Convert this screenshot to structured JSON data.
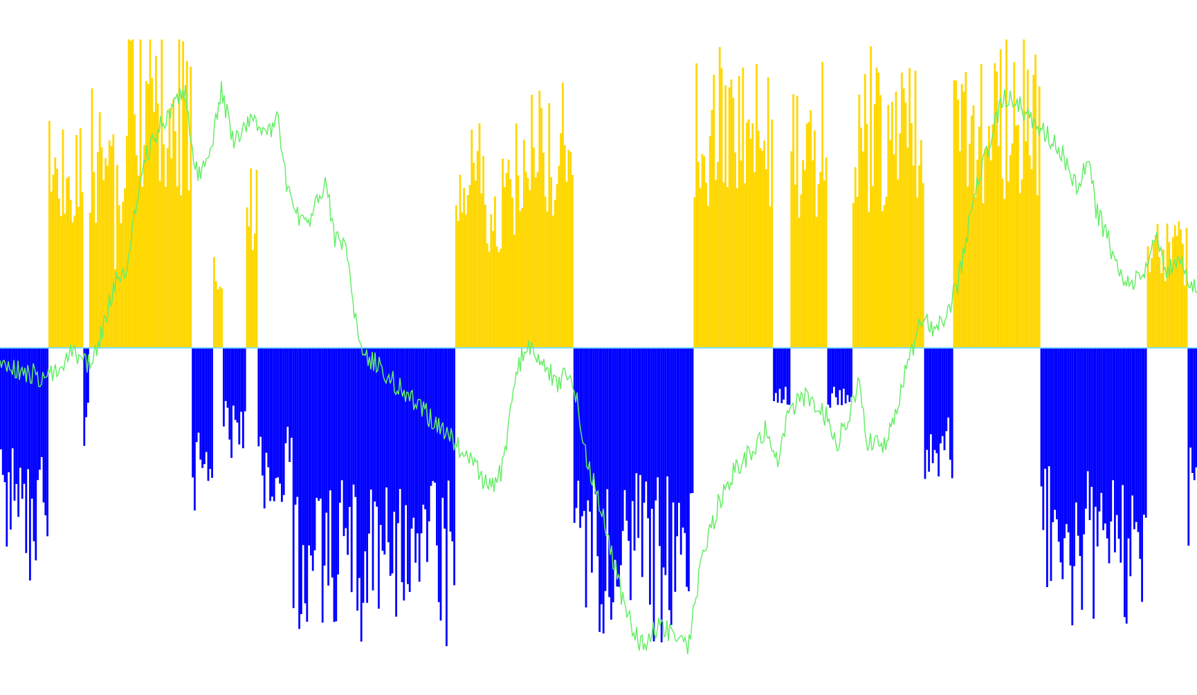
{
  "chart_data": {
    "type": "bar",
    "title": "",
    "xlabel": "",
    "ylabel": "",
    "ylim": [
      -1,
      1
    ],
    "grid": false,
    "legend": "none",
    "colors": {
      "positive": "#FFD700",
      "negative": "#0000FF",
      "line": "#66EE66",
      "zero": "#7FDFFF"
    },
    "series": [
      {
        "type": "bar",
        "segments": [
          {
            "start": 0,
            "end": 0.039,
            "sign": -1,
            "level": 0.58
          },
          {
            "start": 0.039,
            "end": 0.068,
            "sign": 1,
            "level": 0.66
          },
          {
            "start": 0.068,
            "end": 0.074,
            "sign": -1,
            "level": 0.25
          },
          {
            "start": 0.074,
            "end": 0.095,
            "sign": 1,
            "level": 0.72
          },
          {
            "start": 0.095,
            "end": 0.105,
            "sign": 1,
            "level": 0.45
          },
          {
            "start": 0.105,
            "end": 0.16,
            "sign": 1,
            "level": 0.86
          },
          {
            "start": 0.16,
            "end": 0.178,
            "sign": -1,
            "level": 0.4
          },
          {
            "start": 0.178,
            "end": 0.186,
            "sign": 1,
            "level": 0.3
          },
          {
            "start": 0.186,
            "end": 0.204,
            "sign": -1,
            "level": 0.28
          },
          {
            "start": 0.204,
            "end": 0.214,
            "sign": 1,
            "level": 0.45
          },
          {
            "start": 0.214,
            "end": 0.244,
            "sign": -1,
            "level": 0.45
          },
          {
            "start": 0.244,
            "end": 0.38,
            "sign": -1,
            "level": 0.76
          },
          {
            "start": 0.38,
            "end": 0.43,
            "sign": 1,
            "level": 0.55
          },
          {
            "start": 0.43,
            "end": 0.478,
            "sign": 1,
            "level": 0.74
          },
          {
            "start": 0.478,
            "end": 0.578,
            "sign": -1,
            "level": 0.72
          },
          {
            "start": 0.578,
            "end": 0.645,
            "sign": 1,
            "level": 0.78
          },
          {
            "start": 0.645,
            "end": 0.66,
            "sign": -1,
            "level": 0.18
          },
          {
            "start": 0.66,
            "end": 0.69,
            "sign": 1,
            "level": 0.72
          },
          {
            "start": 0.69,
            "end": 0.712,
            "sign": -1,
            "level": 0.18
          },
          {
            "start": 0.712,
            "end": 0.772,
            "sign": 1,
            "level": 0.78
          },
          {
            "start": 0.772,
            "end": 0.796,
            "sign": -1,
            "level": 0.38
          },
          {
            "start": 0.796,
            "end": 0.868,
            "sign": 1,
            "level": 0.82
          },
          {
            "start": 0.868,
            "end": 0.958,
            "sign": -1,
            "level": 0.68
          },
          {
            "start": 0.958,
            "end": 0.992,
            "sign": 1,
            "level": 0.35
          },
          {
            "start": 0.992,
            "end": 1.0,
            "sign": -1,
            "level": 0.55
          }
        ]
      },
      {
        "type": "line",
        "points": [
          [
            0.0,
            -0.05
          ],
          [
            0.04,
            -0.1
          ],
          [
            0.05,
            -0.05
          ],
          [
            0.06,
            -0.02
          ],
          [
            0.075,
            -0.05
          ],
          [
            0.085,
            0.05
          ],
          [
            0.095,
            0.2
          ],
          [
            0.105,
            0.25
          ],
          [
            0.12,
            0.6
          ],
          [
            0.14,
            0.75
          ],
          [
            0.155,
            0.82
          ],
          [
            0.16,
            0.62
          ],
          [
            0.165,
            0.55
          ],
          [
            0.175,
            0.6
          ],
          [
            0.185,
            0.82
          ],
          [
            0.195,
            0.65
          ],
          [
            0.205,
            0.7
          ],
          [
            0.212,
            0.72
          ],
          [
            0.222,
            0.68
          ],
          [
            0.232,
            0.73
          ],
          [
            0.24,
            0.5
          ],
          [
            0.25,
            0.4
          ],
          [
            0.26,
            0.42
          ],
          [
            0.272,
            0.52
          ],
          [
            0.28,
            0.35
          ],
          [
            0.29,
            0.3
          ],
          [
            0.298,
            0.05
          ],
          [
            0.3,
            0.0
          ],
          [
            0.38,
            -0.3
          ],
          [
            0.39,
            -0.35
          ],
          [
            0.4,
            -0.4
          ],
          [
            0.41,
            -0.45
          ],
          [
            0.42,
            -0.38
          ],
          [
            0.43,
            -0.1
          ],
          [
            0.44,
            0.02
          ],
          [
            0.455,
            -0.05
          ],
          [
            0.465,
            -0.12
          ],
          [
            0.475,
            -0.08
          ],
          [
            0.48,
            -0.12
          ],
          [
            0.49,
            -0.35
          ],
          [
            0.505,
            -0.55
          ],
          [
            0.52,
            -0.8
          ],
          [
            0.535,
            -0.95
          ],
          [
            0.55,
            -0.88
          ],
          [
            0.565,
            -0.92
          ],
          [
            0.575,
            -0.95
          ],
          [
            0.585,
            -0.7
          ],
          [
            0.6,
            -0.5
          ],
          [
            0.615,
            -0.38
          ],
          [
            0.63,
            -0.32
          ],
          [
            0.64,
            -0.25
          ],
          [
            0.65,
            -0.35
          ],
          [
            0.66,
            -0.2
          ],
          [
            0.675,
            -0.15
          ],
          [
            0.69,
            -0.22
          ],
          [
            0.7,
            -0.3
          ],
          [
            0.71,
            -0.2
          ],
          [
            0.718,
            -0.1
          ],
          [
            0.725,
            -0.3
          ],
          [
            0.74,
            -0.32
          ],
          [
            0.755,
            -0.1
          ],
          [
            0.77,
            0.1
          ],
          [
            0.78,
            0.05
          ],
          [
            0.79,
            0.1
          ],
          [
            0.8,
            0.2
          ],
          [
            0.815,
            0.5
          ],
          [
            0.83,
            0.7
          ],
          [
            0.84,
            0.8
          ],
          [
            0.85,
            0.78
          ],
          [
            0.86,
            0.72
          ],
          [
            0.875,
            0.68
          ],
          [
            0.89,
            0.6
          ],
          [
            0.9,
            0.5
          ],
          [
            0.91,
            0.6
          ],
          [
            0.915,
            0.45
          ],
          [
            0.925,
            0.35
          ],
          [
            0.94,
            0.2
          ],
          [
            0.955,
            0.22
          ],
          [
            0.965,
            0.35
          ],
          [
            0.975,
            0.25
          ],
          [
            0.985,
            0.28
          ],
          [
            0.995,
            0.2
          ],
          [
            1.0,
            0.2
          ]
        ]
      }
    ]
  }
}
